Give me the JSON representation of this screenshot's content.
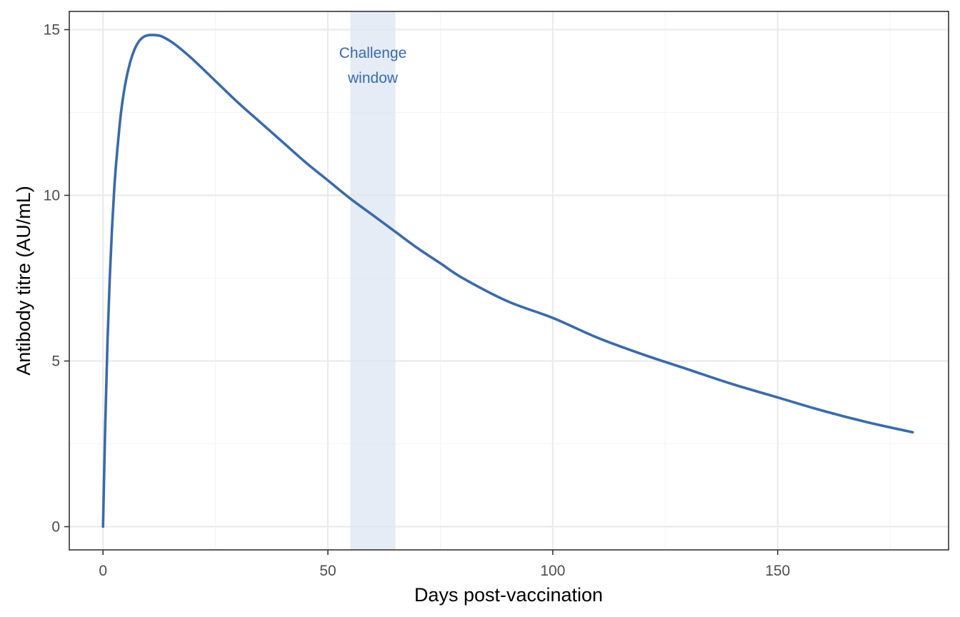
{
  "colors": {
    "line": "#3b6aa8",
    "band": "#dce6f2",
    "annotation": "#3b6aa8",
    "grid_major": "#ebebeb",
    "grid_minor": "#f4f4f4",
    "panel_border": "#333333"
  },
  "chart_data": {
    "type": "line",
    "title": "",
    "xlabel": "Days post-vaccination",
    "ylabel": "Antibody titre (AU/mL)",
    "xlim": [
      -7.5,
      188
    ],
    "ylim": [
      -0.7,
      15.55
    ],
    "x_ticks": [
      0,
      50,
      100,
      150
    ],
    "x_tick_labels": [
      "0",
      "50",
      "100",
      "150"
    ],
    "x_minor_ticks": [
      25,
      75,
      125,
      175
    ],
    "y_ticks": [
      0,
      5,
      10,
      15
    ],
    "y_tick_labels": [
      "0",
      "5",
      "10",
      "15"
    ],
    "y_minor_ticks": [
      2.5,
      7.5,
      12.5
    ],
    "grid": true,
    "legend": "none",
    "series": [
      {
        "x": [
          0,
          0.5,
          1,
          1.5,
          2,
          2.5,
          3,
          4,
          5,
          6,
          7,
          8,
          9,
          10,
          11,
          12,
          13,
          15,
          17,
          20,
          25,
          30,
          35,
          40,
          45,
          50,
          55,
          60,
          65,
          70,
          75,
          80,
          90,
          100,
          110,
          120,
          130,
          140,
          150,
          160,
          170,
          180
        ],
        "values": [
          0,
          3.1,
          5.6,
          7.5,
          9.0,
          10.2,
          11.1,
          12.5,
          13.4,
          14.0,
          14.4,
          14.65,
          14.78,
          14.83,
          14.84,
          14.83,
          14.8,
          14.65,
          14.45,
          14.1,
          13.45,
          12.8,
          12.2,
          11.6,
          11.0,
          10.45,
          9.9,
          9.4,
          8.9,
          8.4,
          7.95,
          7.5,
          6.8,
          6.3,
          5.7,
          5.2,
          4.75,
          4.3,
          3.9,
          3.5,
          3.15,
          2.85
        ]
      }
    ],
    "annotations": [
      {
        "type": "band",
        "x_range": [
          55,
          65
        ],
        "text_lines": [
          "Challenge",
          "window"
        ],
        "text_x": 60,
        "text_y": [
          14.3,
          13.55
        ]
      }
    ]
  }
}
